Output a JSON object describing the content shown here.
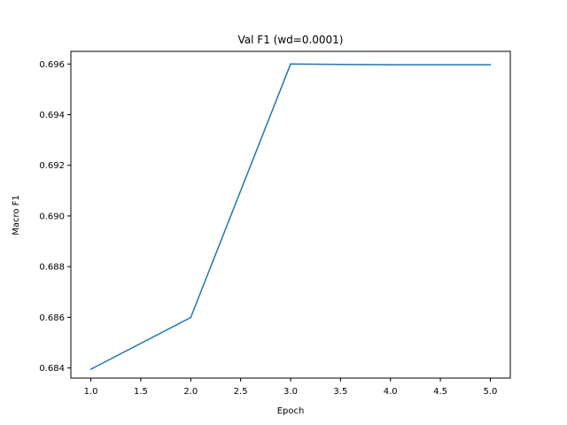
{
  "chart_data": {
    "type": "line",
    "title": "Val F1 (wd=0.0001)",
    "xlabel": "Epoch",
    "ylabel": "Macro F1",
    "xlim": [
      0.8,
      5.2
    ],
    "ylim": [
      0.6836,
      0.6965
    ],
    "xticks": [
      1.0,
      1.5,
      2.0,
      2.5,
      3.0,
      3.5,
      4.0,
      4.5,
      5.0
    ],
    "xtick_labels": [
      "1.0",
      "1.5",
      "2.0",
      "2.5",
      "3.0",
      "3.5",
      "4.0",
      "4.5",
      "5.0"
    ],
    "yticks": [
      0.684,
      0.686,
      0.688,
      0.69,
      0.692,
      0.694,
      0.696
    ],
    "ytick_labels": [
      "0.684",
      "0.686",
      "0.688",
      "0.690",
      "0.692",
      "0.694",
      "0.696"
    ],
    "grid": false,
    "series": [
      {
        "color": "#1f77b4",
        "x": [
          1,
          2,
          3,
          4,
          5
        ],
        "y": [
          0.68395,
          0.68599,
          0.696,
          0.69597,
          0.69597
        ]
      }
    ]
  }
}
